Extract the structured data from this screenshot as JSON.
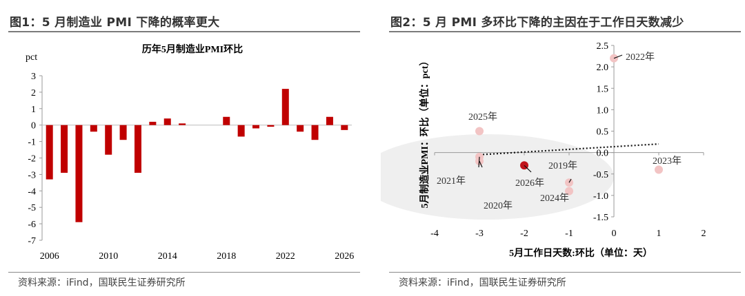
{
  "panel1": {
    "title": "图1：5 月制造业 PMI 下降的概率更大",
    "source": "资料来源：iFind，国联民生证券研究所"
  },
  "panel2": {
    "title": "图2：5 月 PMI 多环比下降的主因在于工作日天数减少",
    "source": "资料来源：iFind，国联民生证券研究所"
  },
  "chart_data": [
    {
      "type": "bar",
      "title": "历年5月制造业PMI环比",
      "ylabel": "pct",
      "xlabel": "",
      "ylim": [
        -7,
        3
      ],
      "yticks": [
        -7,
        -6,
        -5,
        -4,
        -3,
        -2,
        -1,
        0,
        1,
        2,
        3
      ],
      "xtick_labels": [
        "2006",
        "2010",
        "2014",
        "2018",
        "2022",
        "2026"
      ],
      "categories": [
        "2006",
        "2007",
        "2008",
        "2009",
        "2010",
        "2011",
        "2012",
        "2013",
        "2014",
        "2015",
        "2016",
        "2017",
        "2018",
        "2019",
        "2020",
        "2021",
        "2022",
        "2023",
        "2024",
        "2025",
        "2026"
      ],
      "values": [
        -3.3,
        -2.9,
        -5.9,
        -0.4,
        -1.8,
        -0.9,
        -2.9,
        0.2,
        0.4,
        0.1,
        0.0,
        0.0,
        0.5,
        -0.7,
        -0.2,
        -0.1,
        2.2,
        -0.4,
        -0.9,
        0.5,
        -0.3
      ],
      "color": "#c00000"
    },
    {
      "type": "scatter",
      "xlabel": "5月工作日天数:环比（单位：天）",
      "ylabel": "5月制造业PMI：环比（单位：pct）",
      "xlim": [
        -4,
        2
      ],
      "ylim": [
        -1.5,
        2.5
      ],
      "xticks": [
        -4,
        -3,
        -2,
        -1,
        0,
        1,
        2
      ],
      "yticks": [
        2.5,
        2.0,
        1.5,
        1.0,
        0.5,
        0.0,
        -0.5,
        -1.0,
        -1.5
      ],
      "ytick_labels": [
        "2.5",
        "2.0",
        "1.5",
        "1.0",
        "0.5",
        "0.0",
        "-0.5",
        "-1.0",
        "-1.5"
      ],
      "points": [
        {
          "label": "2022年",
          "x": 0,
          "y": 2.2,
          "highlight": false
        },
        {
          "label": "2025年",
          "x": -3,
          "y": 0.5,
          "highlight": false
        },
        {
          "label": "2021年",
          "x": -3,
          "y": -0.1,
          "highlight": false
        },
        {
          "label": "2020年",
          "x": -3,
          "y": -0.2,
          "highlight": false
        },
        {
          "label": "2026年",
          "x": -2,
          "y": -0.3,
          "highlight": true
        },
        {
          "label": "2019年",
          "x": -1,
          "y": -0.7,
          "highlight": false
        },
        {
          "label": "2024年",
          "x": -1,
          "y": -0.9,
          "highlight": false
        },
        {
          "label": "2023年",
          "x": 1,
          "y": -0.4,
          "highlight": false
        }
      ],
      "trendline": {
        "style": "dotted",
        "from": [
          -3,
          -0.05
        ],
        "to": [
          1,
          0.2
        ]
      },
      "highlight_color": "#c0141c",
      "point_color": "#f2c4c4"
    }
  ]
}
